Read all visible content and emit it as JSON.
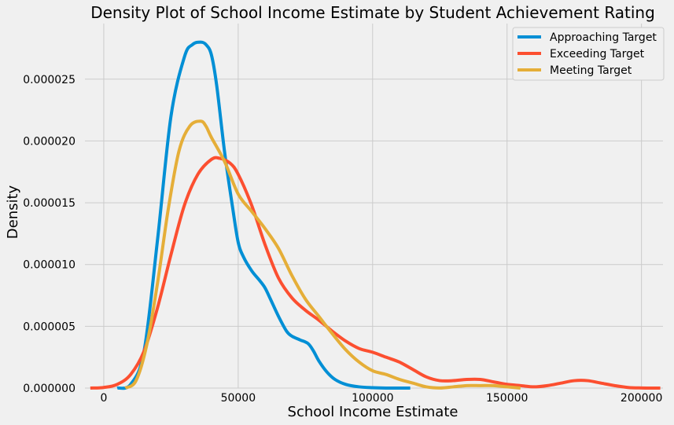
{
  "chart_data": {
    "type": "line",
    "title": "Density Plot of School Income Estimate by Student Achievement Rating",
    "xlabel": "School Income Estimate",
    "ylabel": "Density",
    "xlim": [
      -7000,
      208000
    ],
    "ylim": [
      0,
      2.95e-05
    ],
    "xticks": [
      0,
      50000,
      100000,
      150000,
      200000
    ],
    "xtick_labels": [
      "0",
      "50000",
      "100000",
      "150000",
      "200000"
    ],
    "yticks": [
      0,
      5e-06,
      1e-05,
      1.5e-05,
      2e-05,
      2.5e-05
    ],
    "ytick_labels": [
      "0.000000",
      "0.000005",
      "0.000010",
      "0.000015",
      "0.000020",
      "0.000025"
    ],
    "grid": true,
    "legend_position": "top-right",
    "series": [
      {
        "name": "Approaching Target",
        "color": "#008fd5",
        "x": [
          5000,
          10000,
          15000,
          20000,
          25000,
          30000,
          33000,
          36000,
          38000,
          40000,
          42000,
          45000,
          48000,
          50000,
          52000,
          55000,
          58000,
          60000,
          62000,
          65000,
          68000,
          70000,
          73000,
          76000,
          78000,
          80000,
          83000,
          86000,
          90000,
          95000,
          100000,
          105000,
          110000,
          114000
        ],
        "y": [
          0,
          3e-07,
          3e-06,
          1.2e-05,
          2.2e-05,
          2.68e-05,
          2.78e-05,
          2.8e-05,
          2.78e-05,
          2.7e-05,
          2.45e-05,
          1.9e-05,
          1.45e-05,
          1.18e-05,
          1.06e-05,
          9.5e-06,
          8.7e-06,
          8.1e-06,
          7.2e-06,
          5.8e-06,
          4.6e-06,
          4.2e-06,
          3.9e-06,
          3.6e-06,
          3e-06,
          2.2e-06,
          1.3e-06,
          7e-07,
          3e-07,
          1e-07,
          3e-08,
          0,
          0,
          0
        ]
      },
      {
        "name": "Exceeding Target",
        "color": "#fc4f30",
        "x": [
          -5000,
          0,
          5000,
          10000,
          15000,
          20000,
          25000,
          30000,
          35000,
          40000,
          43000,
          47000,
          50000,
          55000,
          60000,
          65000,
          70000,
          75000,
          80000,
          85000,
          90000,
          95000,
          100000,
          105000,
          110000,
          115000,
          120000,
          125000,
          130000,
          135000,
          140000,
          145000,
          150000,
          155000,
          160000,
          165000,
          170000,
          175000,
          180000,
          185000,
          190000,
          195000,
          200000,
          207000
        ],
        "y": [
          0,
          5e-08,
          3e-07,
          1.1e-06,
          3e-06,
          6.5e-06,
          1.08e-05,
          1.48e-05,
          1.73e-05,
          1.85e-05,
          1.86e-05,
          1.82e-05,
          1.73e-05,
          1.48e-05,
          1.16e-05,
          8.9e-06,
          7.3e-06,
          6.3e-06,
          5.5e-06,
          4.6e-06,
          3.8e-06,
          3.2e-06,
          2.9e-06,
          2.5e-06,
          2.1e-06,
          1.5e-06,
          9e-07,
          6e-07,
          6e-07,
          7e-07,
          7e-07,
          5e-07,
          3e-07,
          2e-07,
          1e-07,
          2e-07,
          4e-07,
          6e-07,
          6e-07,
          4e-07,
          2e-07,
          5e-08,
          1e-08,
          0
        ]
      },
      {
        "name": "Meeting Target",
        "color": "#e5ae38",
        "x": [
          8000,
          12000,
          16000,
          20000,
          24000,
          28000,
          32000,
          36000,
          38000,
          40000,
          45000,
          50000,
          55000,
          60000,
          65000,
          70000,
          75000,
          80000,
          85000,
          90000,
          95000,
          100000,
          105000,
          110000,
          115000,
          120000,
          125000,
          130000,
          135000,
          140000,
          145000,
          150000,
          155000
        ],
        "y": [
          0,
          6e-07,
          3.5e-06,
          8.5e-06,
          1.45e-05,
          1.92e-05,
          2.12e-05,
          2.16e-05,
          2.12e-05,
          2.03e-05,
          1.83e-05,
          1.57e-05,
          1.43e-05,
          1.29e-05,
          1.13e-05,
          9.1e-06,
          7.2e-06,
          5.8e-06,
          4.4e-06,
          3.1e-06,
          2.1e-06,
          1.4e-06,
          1.1e-06,
          7e-07,
          4e-07,
          1e-07,
          1e-08,
          1e-07,
          2e-07,
          2e-07,
          2e-07,
          1e-07,
          0
        ]
      }
    ]
  }
}
